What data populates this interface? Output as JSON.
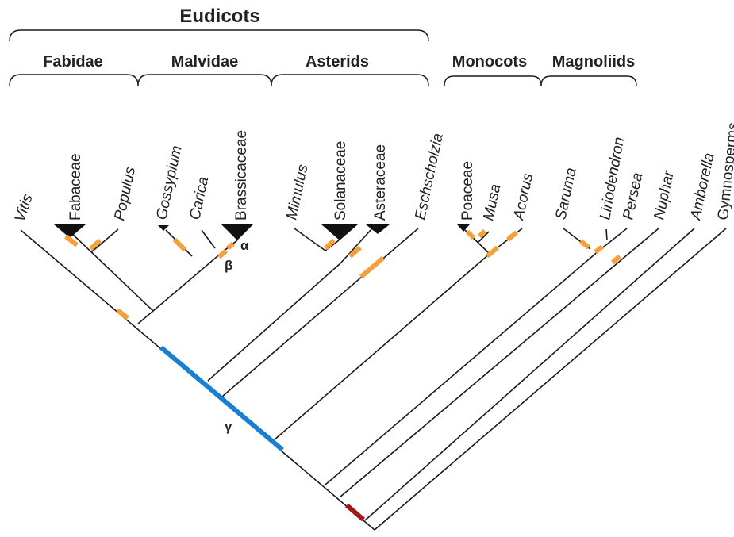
{
  "groups": {
    "eudicots": "Eudicots",
    "fabidae": "Fabidae",
    "malvidae": "Malvidae",
    "asterids": "Asterids",
    "monocots": "Monocots",
    "magnoliids": "Magnoliids"
  },
  "taxa": {
    "vitis": "Vitis",
    "fabaceae": "Fabaceae",
    "populus": "Populus",
    "gossypium": "Gossypium",
    "carica": "Carica",
    "brassicaceae": "Brassicaceae",
    "mimulus": "Mimulus",
    "solanaceae": "Solanaceae",
    "asteraceae": "Asteraceae",
    "eschscholzia": "Eschscholzia",
    "poaceae": "Poaceae",
    "musa": "Musa",
    "acorus": "Acorus",
    "saruma": "Saruma",
    "liriodendron": "Liriodendron",
    "persea": "Persea",
    "nuphar": "Nuphar",
    "amborella": "Amborella",
    "gymnosperms": "Gymnosperms"
  },
  "wgd": {
    "alpha": "α",
    "beta": "β",
    "gamma": "γ"
  },
  "colors": {
    "branch": "#1a1a1a",
    "lineage_wgd": "#f5a03a",
    "gamma_wgd": "#1a7fd0",
    "seed_plant_wgd": "#a01818"
  }
}
